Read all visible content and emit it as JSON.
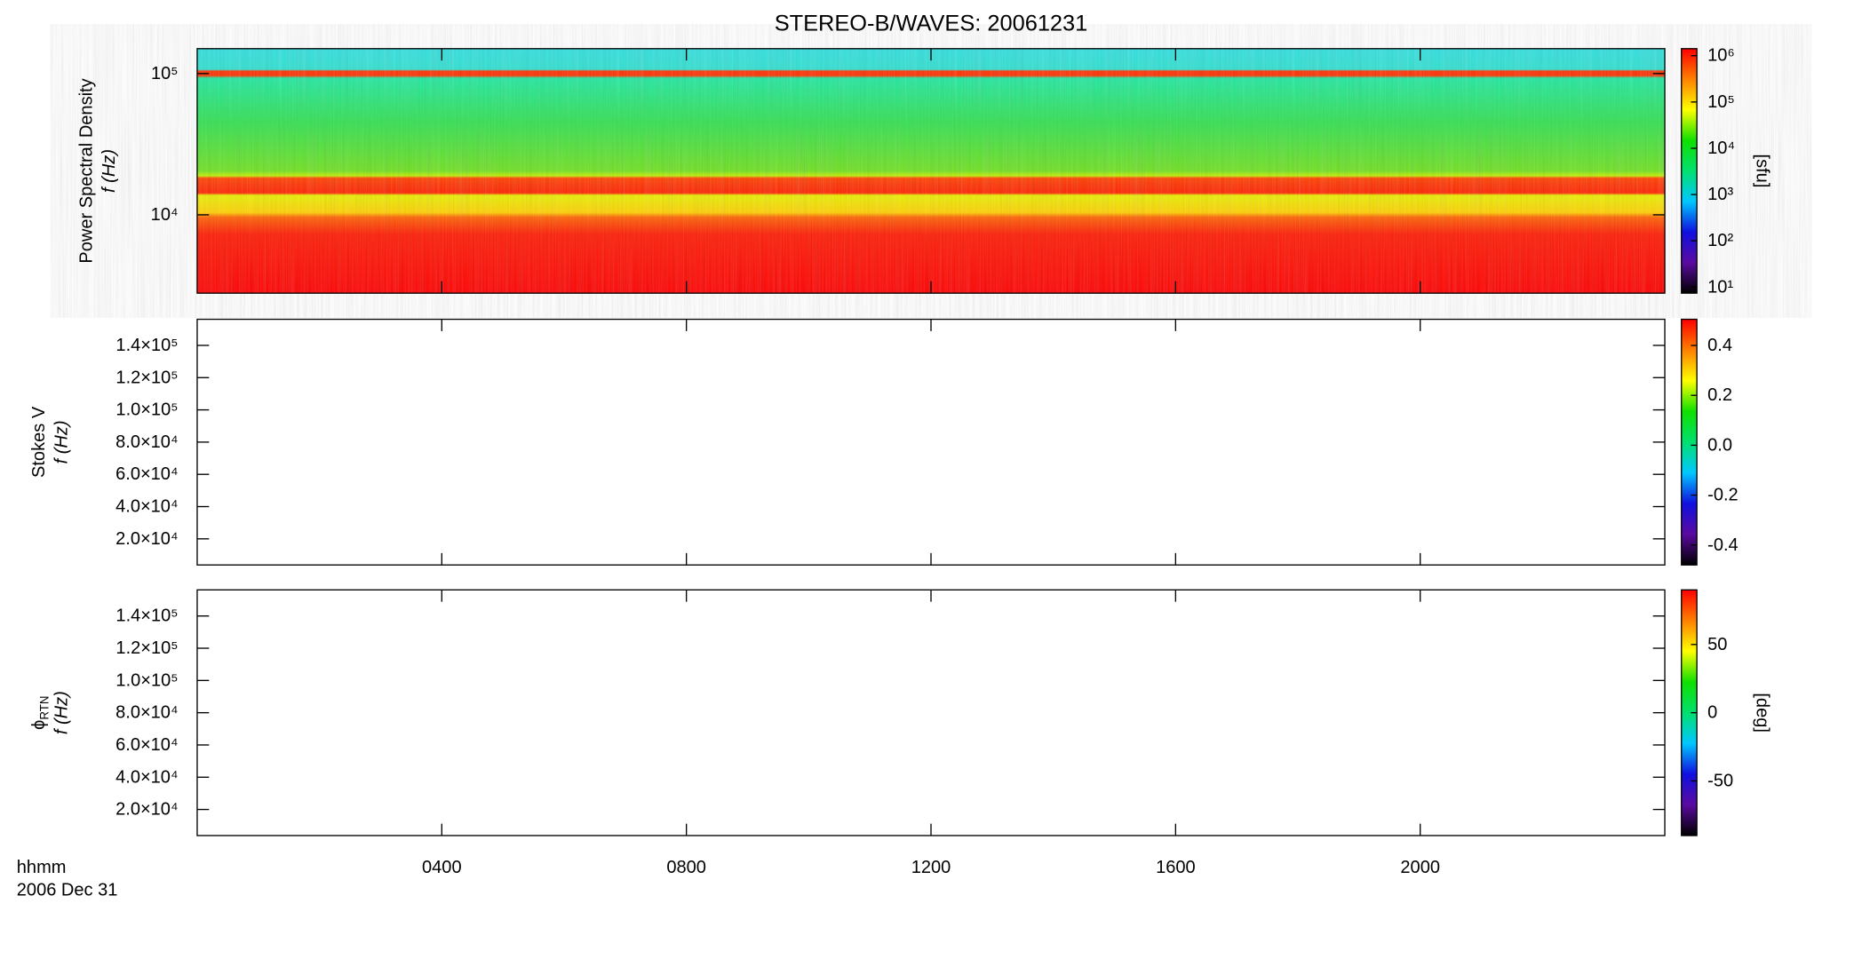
{
  "chart_data": [
    {
      "type": "heatmap",
      "title": "STEREO-B/WAVES: 20061231",
      "ylabel": "Power Spectral Density",
      "ylabel2": "f (Hz)",
      "ylog": true,
      "ylim": [
        2790,
        150000
      ],
      "yticks": [
        {
          "value": 10000,
          "label": "10⁴"
        },
        {
          "value": 100000,
          "label": "10⁵"
        }
      ],
      "colorbar": {
        "label": "[sfu]",
        "log": true,
        "lim": [
          7.4,
          1420000
        ],
        "ticks": [
          {
            "value": 10,
            "label": "10¹"
          },
          {
            "value": 100,
            "label": "10²"
          },
          {
            "value": 1000,
            "label": "10³"
          },
          {
            "value": 10000,
            "label": "10⁴"
          },
          {
            "value": 100000,
            "label": "10⁵"
          },
          {
            "value": 1000000,
            "label": "10⁶"
          }
        ],
        "colors": [
          "#000000",
          "#5a0aa0",
          "#1010e0",
          "#00c8ff",
          "#00e070",
          "#10e000",
          "#ffff00",
          "#ff8000",
          "#ff0000"
        ]
      }
    },
    {
      "type": "heatmap",
      "ylabel": "Stokes V",
      "ylabel2": "f (Hz)",
      "ylog": false,
      "ylim": [
        3800,
        156200
      ],
      "yticks": [
        {
          "value": 20000,
          "label": "2.0×10⁴"
        },
        {
          "value": 40000,
          "label": "4.0×10⁴"
        },
        {
          "value": 60000,
          "label": "6.0×10⁴"
        },
        {
          "value": 80000,
          "label": "8.0×10⁴"
        },
        {
          "value": 100000,
          "label": "1.0×10⁵"
        },
        {
          "value": 120000,
          "label": "1.2×10⁵"
        },
        {
          "value": 140000,
          "label": "1.4×10⁵"
        }
      ],
      "colorbar": {
        "log": false,
        "lim": [
          -0.48,
          0.505
        ],
        "ticks": [
          -0.4,
          -0.2,
          {
            "value": 0,
            "label": "0.0"
          },
          0.2,
          0.4
        ],
        "colors": [
          "#000000",
          "#5a0aa0",
          "#1010e0",
          "#00c8ff",
          "#00e070",
          "#10e000",
          "#ffff00",
          "#ff8000",
          "#ff0000"
        ]
      }
    },
    {
      "type": "heatmap",
      "ylabel": "ϕ",
      "ylabel_sub": "RTN",
      "ylabel2": "f (Hz)",
      "ylog": false,
      "ylim": [
        3800,
        156200
      ],
      "yticks": [
        {
          "value": 20000,
          "label": "2.0×10⁴"
        },
        {
          "value": 40000,
          "label": "4.0×10⁴"
        },
        {
          "value": 60000,
          "label": "6.0×10⁴"
        },
        {
          "value": 80000,
          "label": "8.0×10⁴"
        },
        {
          "value": 100000,
          "label": "1.0×10⁵"
        },
        {
          "value": 120000,
          "label": "1.2×10⁵"
        },
        {
          "value": 140000,
          "label": "1.4×10⁵"
        }
      ],
      "colorbar": {
        "label": "[deg]",
        "log": false,
        "lim": [
          -90,
          90
        ],
        "ticks": [
          -50,
          0,
          50
        ],
        "colors": [
          "#000000",
          "#5a0aa0",
          "#1010e0",
          "#00c8ff",
          "#00e070",
          "#10e000",
          "#ffff00",
          "#ff8000",
          "#ff0000"
        ]
      },
      "xlabel": "hhmm",
      "xlabel2": "2006 Dec 31",
      "xlim": [
        0,
        24
      ],
      "xticks": [
        {
          "value": 4,
          "label": "0400"
        },
        {
          "value": 8,
          "label": "0800"
        },
        {
          "value": 12,
          "label": "1200"
        },
        {
          "value": 16,
          "label": "1600"
        },
        {
          "value": 20,
          "label": "2000"
        }
      ]
    }
  ]
}
